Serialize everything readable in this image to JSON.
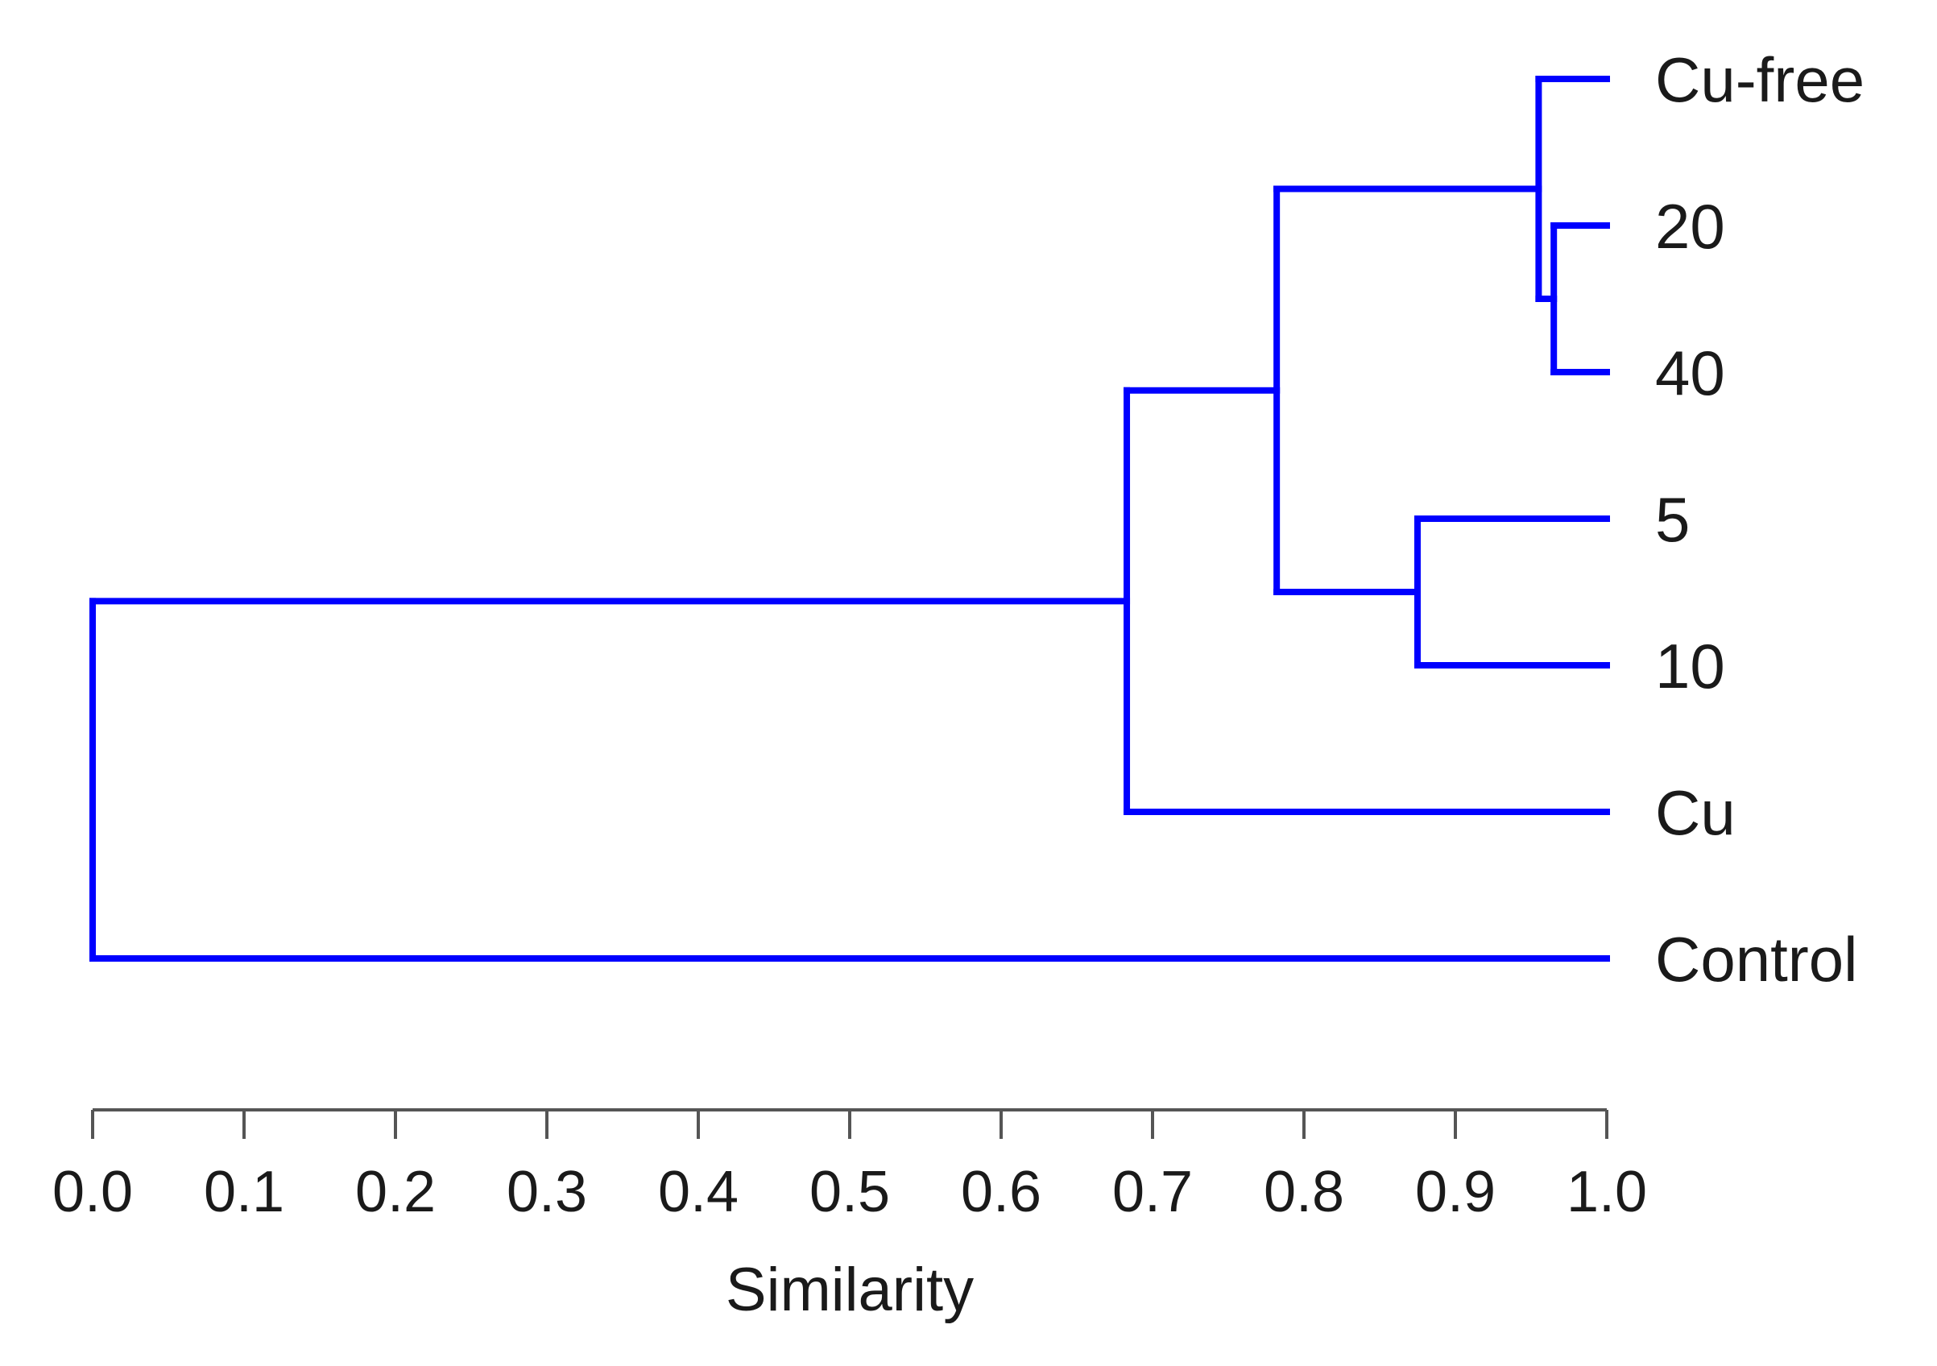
{
  "chart_data": {
    "type": "dendrogram",
    "xlabel": "Similarity",
    "xlim": [
      0.0,
      1.0
    ],
    "ticks": [
      "0.0",
      "0.1",
      "0.2",
      "0.3",
      "0.4",
      "0.5",
      "0.6",
      "0.7",
      "0.8",
      "0.9",
      "1.0"
    ],
    "leaves": [
      "Cu-free",
      "20",
      "40",
      "5",
      "10",
      "Cu",
      "Control"
    ],
    "merges": [
      {
        "children": [
          "20",
          "40"
        ],
        "similarity": 0.965
      },
      {
        "children": [
          "Cu-free",
          "20+40"
        ],
        "similarity": 0.955
      },
      {
        "children": [
          "5",
          "10"
        ],
        "similarity": 0.875
      },
      {
        "children": [
          "Cu-free+20+40",
          "5+10"
        ],
        "similarity": 0.782
      },
      {
        "children": [
          "Cu-free+20+40+5+10",
          "Cu"
        ],
        "similarity": 0.683
      },
      {
        "children": [
          "all-others",
          "Control"
        ],
        "similarity": 0.0
      }
    ],
    "line_color": "#0000ff"
  }
}
